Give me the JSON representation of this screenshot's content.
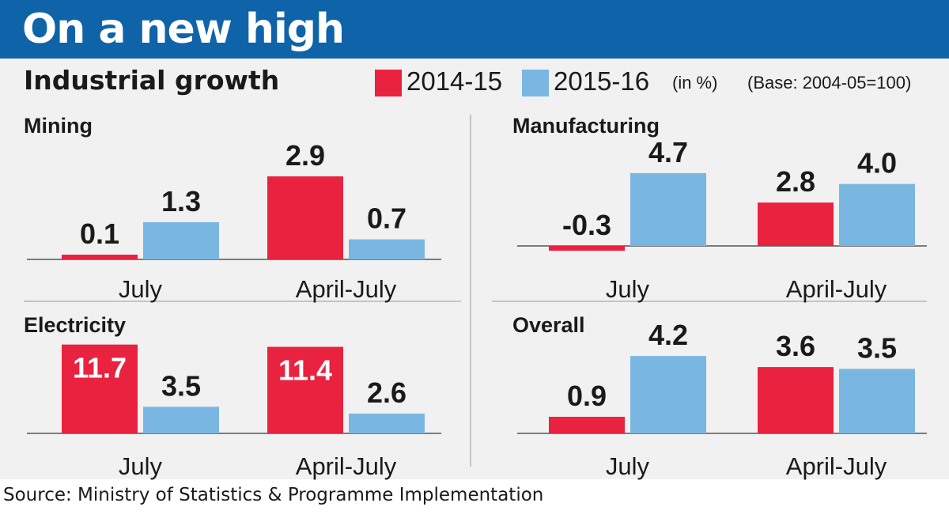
{
  "header": {
    "headline": "On a new high",
    "subtitle": "Industrial growth",
    "legend": [
      {
        "label": "2014-15",
        "color": "#e8223f"
      },
      {
        "label": "2015-16",
        "color": "#7ab6e2"
      }
    ],
    "unit_note": "(in %)",
    "base_note": "(Base: 2004-05=100)"
  },
  "source": "Source: Ministry of Statistics & Programme Implementation",
  "chart_data": [
    {
      "type": "bar",
      "title": "Mining",
      "categories": [
        "July",
        "April-July"
      ],
      "series": [
        {
          "name": "2014-15",
          "values": [
            0.1,
            2.9
          ]
        },
        {
          "name": "2015-16",
          "values": [
            1.3,
            0.7
          ]
        }
      ],
      "value_labels": [
        [
          "0.1",
          "2.9"
        ],
        [
          "1.3",
          "0.7"
        ]
      ]
    },
    {
      "type": "bar",
      "title": "Manufacturing",
      "categories": [
        "July",
        "April-July"
      ],
      "series": [
        {
          "name": "2014-15",
          "values": [
            -0.3,
            2.8
          ]
        },
        {
          "name": "2015-16",
          "values": [
            4.7,
            4.0
          ]
        }
      ],
      "value_labels": [
        [
          "-0.3",
          "2.8"
        ],
        [
          "4.7",
          "4.0"
        ]
      ]
    },
    {
      "type": "bar",
      "title": "Electricity",
      "categories": [
        "July",
        "April-July"
      ],
      "series": [
        {
          "name": "2014-15",
          "values": [
            11.7,
            11.4
          ]
        },
        {
          "name": "2015-16",
          "values": [
            3.5,
            2.6
          ]
        }
      ],
      "value_labels": [
        [
          "11.7",
          "11.4"
        ],
        [
          "3.5",
          "2.6"
        ]
      ]
    },
    {
      "type": "bar",
      "title": "Overall",
      "categories": [
        "July",
        "April-July"
      ],
      "series": [
        {
          "name": "2014-15",
          "values": [
            0.9,
            3.6
          ]
        },
        {
          "name": "2015-16",
          "values": [
            4.2,
            3.5
          ]
        }
      ],
      "value_labels": [
        [
          "0.9",
          "3.6"
        ],
        [
          "4.2",
          "3.5"
        ]
      ]
    }
  ]
}
